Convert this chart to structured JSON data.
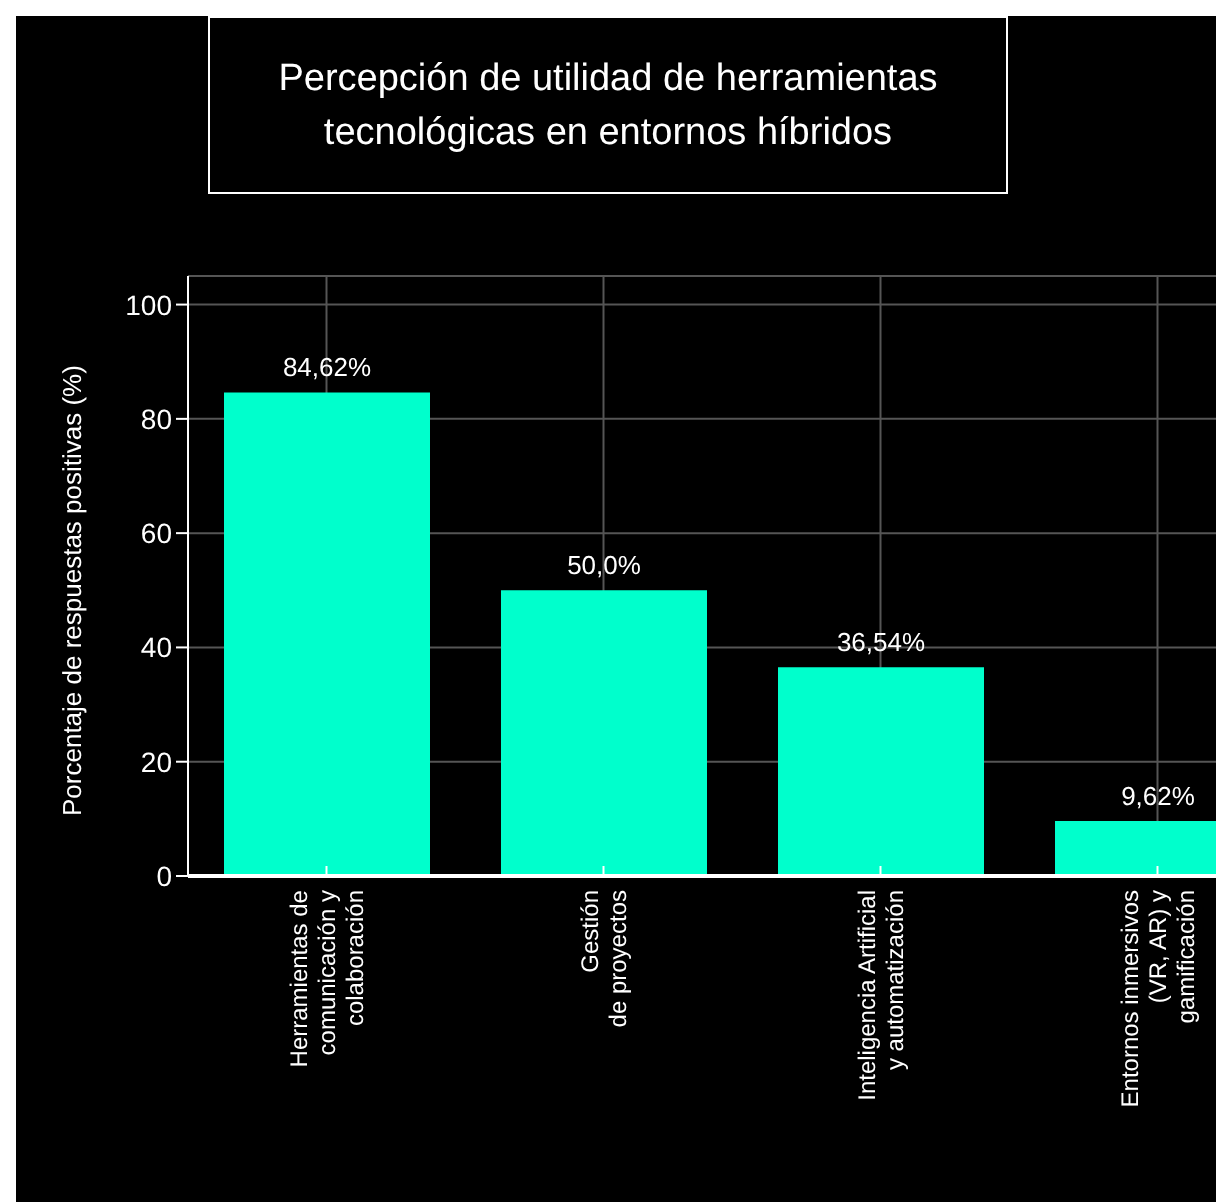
{
  "chart_data": {
    "type": "bar",
    "title": "Percepción de utilidad de herramientas tecnológicas en entornos híbridos",
    "ylabel": "Porcentaje de respuestas positivas (%)",
    "categories": [
      "Herramientas de\ncomunicación y\ncolaboración",
      "Gestión\nde proyectos",
      "Inteligencia Artificial\ny automatización",
      "Entornos inmersivos\n(VR, AR) y\ngamificación"
    ],
    "values": [
      84.62,
      50.0,
      36.54,
      9.62
    ],
    "value_labels": [
      "84,62%",
      "50,0%",
      "36,54%",
      "9,62%"
    ],
    "color": "#00ffcc",
    "ylim": [
      0,
      105
    ],
    "yticks": [
      0,
      20,
      40,
      60,
      80,
      100
    ],
    "grid": true
  }
}
